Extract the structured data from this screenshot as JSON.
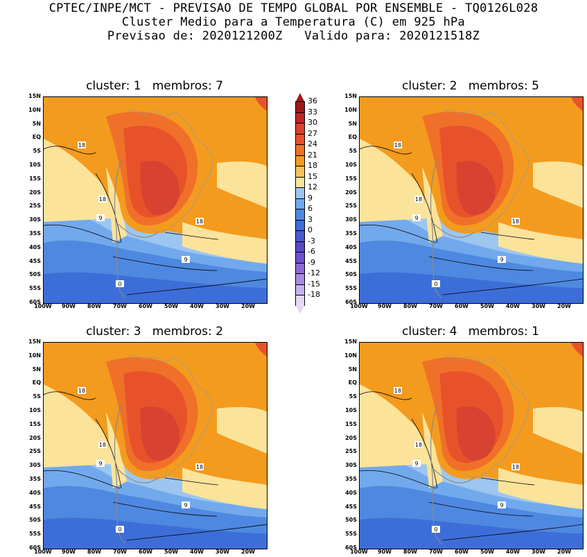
{
  "header": {
    "line1": "CPTEC/INPE/MCT - PREVISAO DE TEMPO GLOBAL POR ENSEMBLE - TQ0126L028",
    "line2": "Cluster Medio para a Temperatura (C) em 925 hPa",
    "line3": "Previsao de: 2020121200Z   Valido para: 2020121518Z"
  },
  "axes": {
    "lat_ticks": [
      "15N",
      "10N",
      "5N",
      "EQ",
      "5S",
      "10S",
      "15S",
      "20S",
      "25S",
      "30S",
      "35S",
      "40S",
      "45S",
      "50S",
      "55S",
      "60S"
    ],
    "lon_ticks": [
      "100W",
      "90W",
      "80W",
      "70W",
      "60W",
      "50W",
      "40W",
      "30W",
      "20W"
    ]
  },
  "colorbar": {
    "levels": [
      "36",
      "33",
      "30",
      "27",
      "24",
      "21",
      "18",
      "15",
      "12",
      "9",
      "6",
      "3",
      "0",
      "-3",
      "-6",
      "-9",
      "-12",
      "-15",
      "-18"
    ],
    "colors": [
      "#a01818",
      "#c02626",
      "#d84230",
      "#e8522a",
      "#f0702a",
      "#f39b1e",
      "#f6c35a",
      "#fbe39a",
      "#9cc6f0",
      "#72a9ec",
      "#4f88e0",
      "#3d6ed8",
      "#4a57cf",
      "#5847c9",
      "#6e4fcf",
      "#8a6ad8",
      "#a98ae2",
      "#c7b3ec",
      "#e3d9f4"
    ]
  },
  "panels": [
    {
      "title": "cluster: 1   membros: 7",
      "labels": [
        "18",
        "18",
        "18",
        "9",
        "9",
        "0"
      ]
    },
    {
      "title": "cluster: 2   membros: 5",
      "labels": [
        "18",
        "18",
        "18",
        "9",
        "9",
        "0"
      ]
    },
    {
      "title": "cluster: 3   membros: 2",
      "labels": [
        "18",
        "18",
        "18",
        "9",
        "9",
        "0"
      ]
    },
    {
      "title": "cluster: 4   membros: 1",
      "labels": [
        "18",
        "18",
        "18",
        "9",
        "9",
        "0"
      ]
    }
  ]
}
